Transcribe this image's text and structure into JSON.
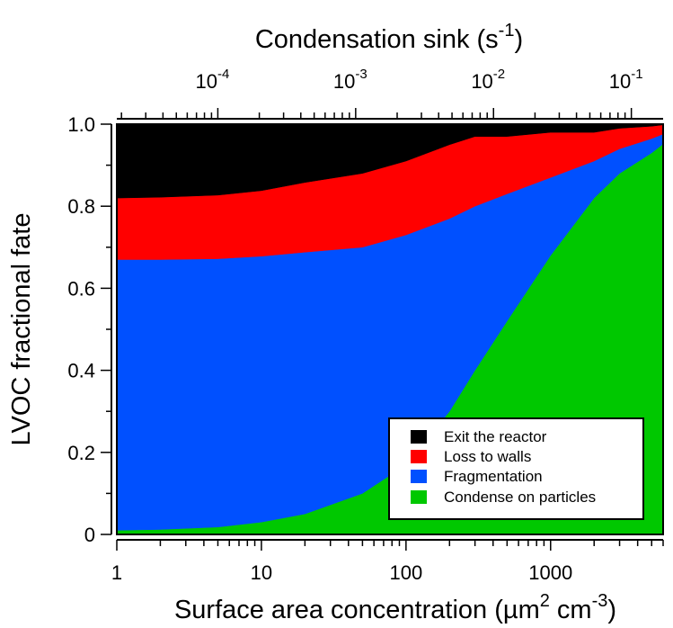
{
  "chart_data": {
    "type": "area",
    "stacked": true,
    "xscale": "log",
    "xlabel_prefix": "Surface area concentration (µm",
    "xlabel_sup1": "2",
    "xlabel_mid": " cm",
    "xlabel_sup2": "-3",
    "xlabel_suffix": ")",
    "ylabel": "LVOC fractional fate",
    "top_axis": {
      "label_prefix": "Condensation sink (s",
      "label_sup": "-1",
      "label_suffix": ")",
      "ticks": [
        {
          "value": 0.0001,
          "base": "10",
          "exp": "-4"
        },
        {
          "value": 0.001,
          "base": "10",
          "exp": "-3"
        },
        {
          "value": 0.01,
          "base": "10",
          "exp": "-2"
        },
        {
          "value": 0.1,
          "base": "10",
          "exp": "-1"
        }
      ],
      "range": [
        1.85e-05,
        0.17
      ]
    },
    "xlim": [
      1,
      6000
    ],
    "ylim": [
      0,
      1
    ],
    "x_ticks": [
      {
        "value": 1,
        "label": "1"
      },
      {
        "value": 10,
        "label": "10"
      },
      {
        "value": 100,
        "label": "100"
      },
      {
        "value": 1000,
        "label": "1000"
      }
    ],
    "y_ticks": [
      {
        "value": 0,
        "label": "0"
      },
      {
        "value": 0.2,
        "label": "0.2"
      },
      {
        "value": 0.4,
        "label": "0.4"
      },
      {
        "value": 0.6,
        "label": "0.6"
      },
      {
        "value": 0.8,
        "label": "0.8"
      },
      {
        "value": 1.0,
        "label": "1.0"
      }
    ],
    "x": [
      1,
      2,
      5,
      10,
      20,
      50,
      100,
      200,
      300,
      500,
      1000,
      2000,
      3000,
      5000,
      6000
    ],
    "series": [
      {
        "name": "Condense on particles",
        "color": "#00c800",
        "values": [
          0.01,
          0.012,
          0.018,
          0.03,
          0.05,
          0.1,
          0.17,
          0.3,
          0.4,
          0.52,
          0.68,
          0.82,
          0.88,
          0.93,
          0.95
        ]
      },
      {
        "name": "Fragmentation",
        "color": "#0050ff",
        "values": [
          0.66,
          0.658,
          0.654,
          0.648,
          0.638,
          0.6,
          0.56,
          0.47,
          0.4,
          0.31,
          0.19,
          0.09,
          0.06,
          0.035,
          0.025
        ]
      },
      {
        "name": "Loss to walls",
        "color": "#ff0000",
        "values": [
          0.15,
          0.152,
          0.155,
          0.16,
          0.17,
          0.18,
          0.18,
          0.18,
          0.17,
          0.14,
          0.11,
          0.07,
          0.05,
          0.03,
          0.023
        ]
      },
      {
        "name": "Exit the reactor",
        "color": "#000000",
        "values": [
          0.18,
          0.178,
          0.173,
          0.162,
          0.142,
          0.12,
          0.09,
          0.05,
          0.03,
          0.03,
          0.02,
          0.02,
          0.01,
          0.005,
          0.002
        ]
      }
    ],
    "legend": {
      "placement": "bottom-right",
      "entries": [
        "Exit the reactor",
        "Loss to walls",
        "Fragmentation",
        "Condense on particles"
      ]
    }
  }
}
